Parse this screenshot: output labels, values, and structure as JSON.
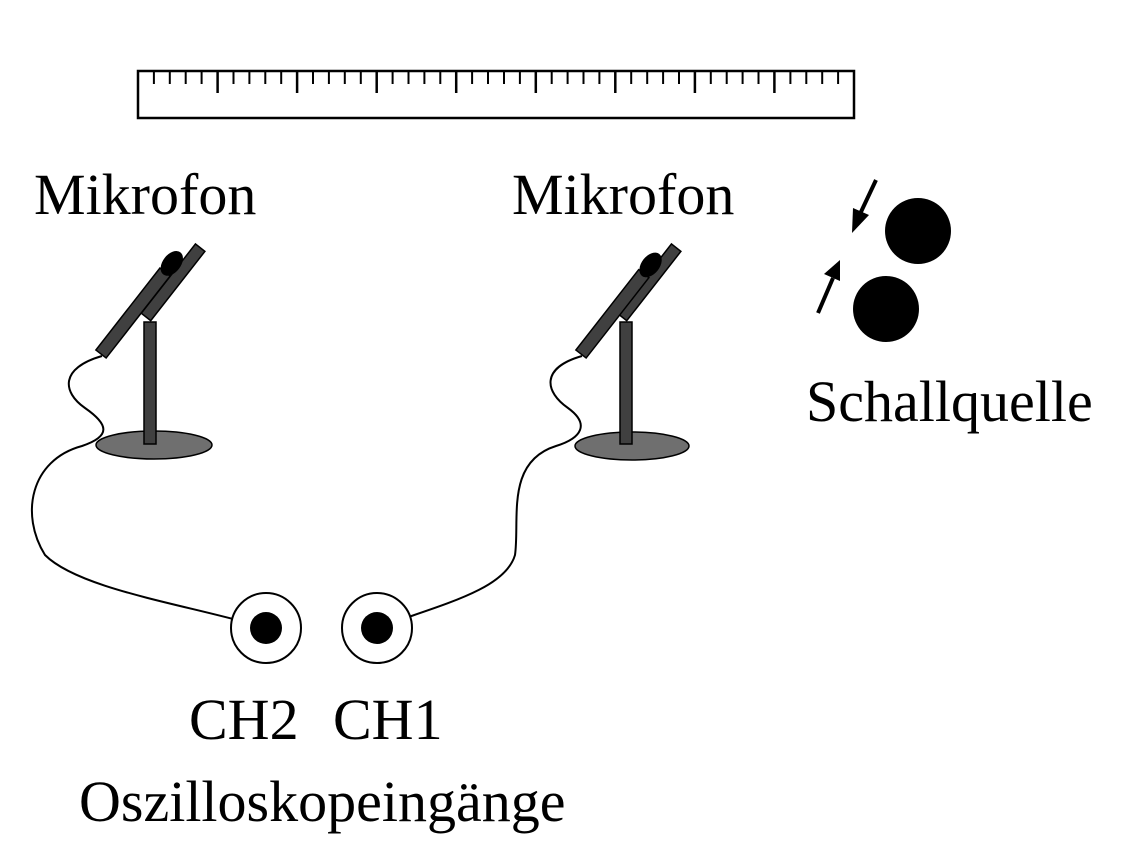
{
  "labels": {
    "mic_left": "Mikrofon",
    "mic_right": "Mikrofon",
    "source": "Schallquelle",
    "ch2": "CH2",
    "ch1": "CH1",
    "inputs": "Oszilloskopeingänge"
  },
  "colors": {
    "line": "#000000",
    "stand": "#404040",
    "base": "#6f6f6f",
    "background": "#ffffff"
  },
  "icons": {
    "ruler": "ruler-icon",
    "microphone": "microphone-icon",
    "sound_source": "sound-source-icon",
    "input_jack": "input-jack-icon"
  },
  "ruler": {
    "major_divisions": 9,
    "minor_per_major": 5
  }
}
